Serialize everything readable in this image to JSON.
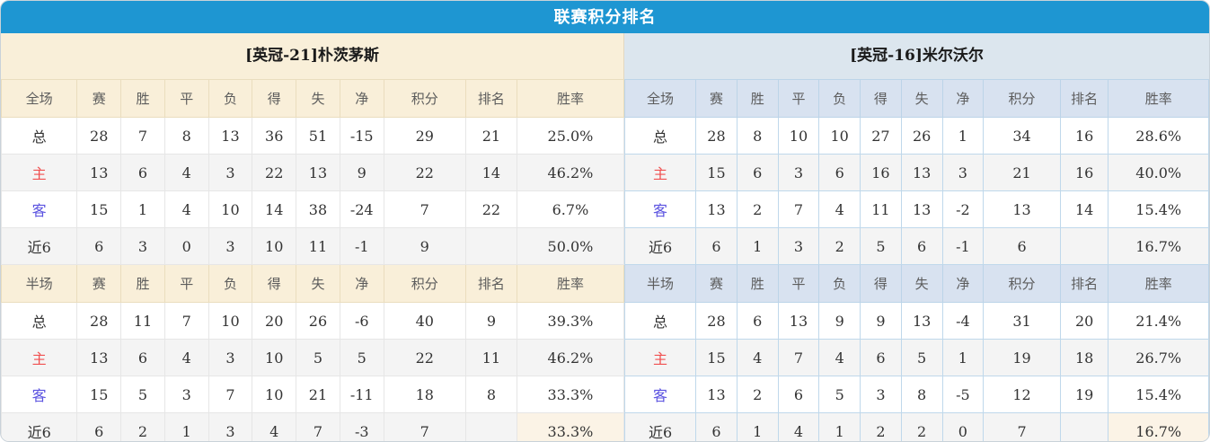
{
  "title": "联赛积分排名",
  "colors": {
    "title_bar_blue": "#1E96D2",
    "left_header_cream": "#F9EFD9",
    "right_header_blue": "#DCE6EE",
    "value_red": "#FE3B1F",
    "rank_blue": "#3585D8",
    "home_label_red": "#F05050",
    "away_label_blue": "#5A52E0",
    "stripe_gray": "#F4F4F4",
    "left_border": "#E6E6E6",
    "right_border": "#BFD8EB"
  },
  "columns_full": [
    "全场",
    "赛",
    "胜",
    "平",
    "负",
    "得",
    "失",
    "净",
    "积分",
    "排名",
    "胜率"
  ],
  "columns_half": [
    "半场",
    "赛",
    "胜",
    "平",
    "负",
    "得",
    "失",
    "净",
    "积分",
    "排名",
    "胜率"
  ],
  "teams": [
    {
      "name": "[英冠-21]朴茨茅斯",
      "full": {
        "rows": [
          {
            "label": "总",
            "cells": [
              28,
              7,
              8,
              13,
              36,
              51,
              -15
            ],
            "points": "29",
            "rank": "21",
            "rate": "25.0%"
          },
          {
            "label": "主",
            "cells": [
              13,
              6,
              4,
              3,
              22,
              13,
              9
            ],
            "points": "22",
            "rank": "14",
            "rate": "46.2%"
          },
          {
            "label": "客",
            "cells": [
              15,
              1,
              4,
              10,
              14,
              38,
              -24
            ],
            "points": "7",
            "rank": "22",
            "rate": "6.7%"
          },
          {
            "label": "近6",
            "cells": [
              6,
              3,
              0,
              3,
              10,
              11,
              -1
            ],
            "points": "9",
            "rank": "",
            "rate": "50.0%"
          }
        ]
      },
      "half": {
        "rows": [
          {
            "label": "总",
            "cells": [
              28,
              11,
              7,
              10,
              20,
              26,
              -6
            ],
            "points": "40",
            "rank": "9",
            "rate": "39.3%"
          },
          {
            "label": "主",
            "cells": [
              13,
              6,
              4,
              3,
              10,
              5,
              5
            ],
            "points": "22",
            "rank": "11",
            "rate": "46.2%"
          },
          {
            "label": "客",
            "cells": [
              15,
              5,
              3,
              7,
              10,
              21,
              -11
            ],
            "points": "18",
            "rank": "8",
            "rate": "33.3%"
          },
          {
            "label": "近6",
            "cells": [
              6,
              2,
              1,
              3,
              4,
              7,
              -3
            ],
            "points": "7",
            "rank": "",
            "rate": "33.3%"
          }
        ]
      }
    },
    {
      "name": "[英冠-16]米尔沃尔",
      "full": {
        "rows": [
          {
            "label": "总",
            "cells": [
              28,
              8,
              10,
              10,
              27,
              26,
              1
            ],
            "points": "34",
            "rank": "16",
            "rate": "28.6%"
          },
          {
            "label": "主",
            "cells": [
              15,
              6,
              3,
              6,
              16,
              13,
              3
            ],
            "points": "21",
            "rank": "16",
            "rate": "40.0%"
          },
          {
            "label": "客",
            "cells": [
              13,
              2,
              7,
              4,
              11,
              13,
              -2
            ],
            "points": "13",
            "rank": "14",
            "rate": "15.4%"
          },
          {
            "label": "近6",
            "cells": [
              6,
              1,
              3,
              2,
              5,
              6,
              -1
            ],
            "points": "6",
            "rank": "",
            "rate": "16.7%"
          }
        ]
      },
      "half": {
        "rows": [
          {
            "label": "总",
            "cells": [
              28,
              6,
              13,
              9,
              9,
              13,
              -4
            ],
            "points": "31",
            "rank": "20",
            "rate": "21.4%"
          },
          {
            "label": "主",
            "cells": [
              15,
              4,
              7,
              4,
              6,
              5,
              1
            ],
            "points": "19",
            "rank": "18",
            "rate": "26.7%"
          },
          {
            "label": "客",
            "cells": [
              13,
              2,
              6,
              5,
              3,
              8,
              -5
            ],
            "points": "12",
            "rank": "19",
            "rate": "15.4%"
          },
          {
            "label": "近6",
            "cells": [
              6,
              1,
              4,
              1,
              2,
              2,
              0
            ],
            "points": "7",
            "rank": "",
            "rate": "16.7%"
          }
        ]
      }
    }
  ]
}
